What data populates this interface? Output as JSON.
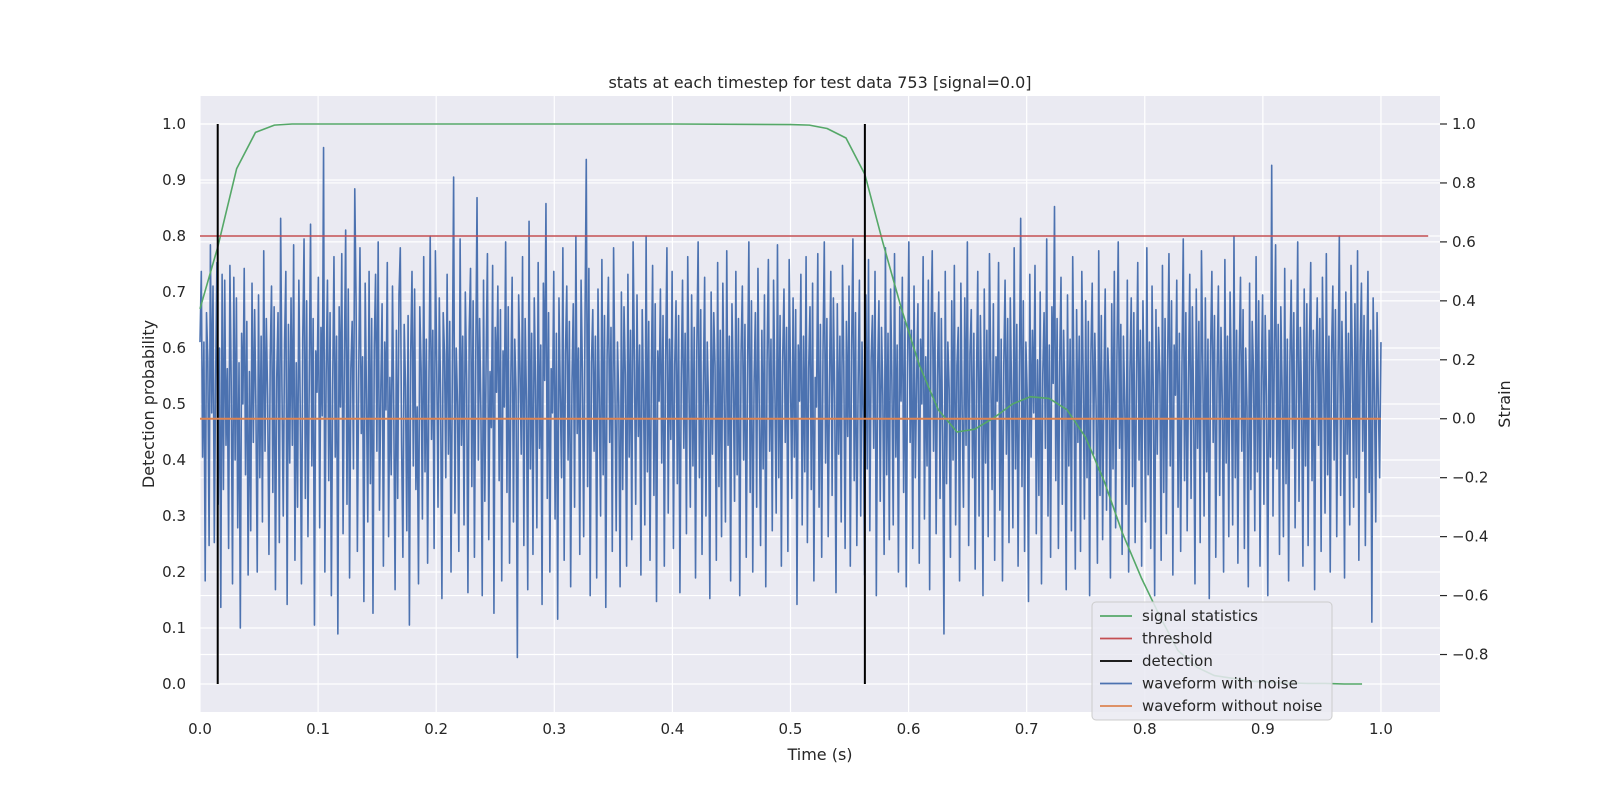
{
  "chart_data": {
    "type": "line",
    "title": "stats at each timestep for test data 753 [signal=0.0]",
    "xlabel": "Time (s)",
    "ylabel": "Detection probability",
    "y2label": "Strain",
    "xlim": [
      0.0,
      1.05
    ],
    "ylim": [
      -0.05,
      1.05
    ],
    "y2lim": [
      -0.995,
      1.095
    ],
    "xticks": [
      "0.0",
      "0.1",
      "0.2",
      "0.3",
      "0.4",
      "0.5",
      "0.6",
      "0.7",
      "0.8",
      "0.9",
      "1.0"
    ],
    "yticks": [
      "0.0",
      "0.1",
      "0.2",
      "0.3",
      "0.4",
      "0.5",
      "0.6",
      "0.7",
      "0.8",
      "0.9",
      "1.0"
    ],
    "y2ticks": [
      "−0.8",
      "−0.6",
      "−0.4",
      "−0.2",
      "0.0",
      "0.2",
      "0.4",
      "0.6",
      "0.8",
      "1.0"
    ],
    "grid": true,
    "legend_position": "lower right",
    "colors": {
      "signal": "#55a868",
      "threshold": "#c44e52",
      "detection": "#000000",
      "noisy": "#4c72b0",
      "clean": "#dd8452",
      "axes_bg": "#eaeaf2",
      "grid": "#ffffff"
    },
    "series": [
      {
        "name": "signal statistics",
        "axis": "left",
        "x": [
          0.0,
          0.015,
          0.031,
          0.047,
          0.063,
          0.078,
          0.1,
          0.2,
          0.3,
          0.4,
          0.5,
          0.516,
          0.531,
          0.547,
          0.563,
          0.578,
          0.594,
          0.609,
          0.625,
          0.641,
          0.656,
          0.672,
          0.688,
          0.703,
          0.719,
          0.734,
          0.75,
          0.766,
          0.781,
          0.797,
          0.813,
          0.828,
          0.844,
          0.859,
          0.875,
          0.891,
          0.906,
          0.922,
          0.938,
          0.953,
          0.969,
          0.984
        ],
        "y": [
          0.67,
          0.78,
          0.92,
          0.985,
          0.998,
          1.0,
          1.0,
          1.0,
          1.0,
          1.0,
          0.999,
          0.998,
          0.992,
          0.975,
          0.91,
          0.79,
          0.67,
          0.57,
          0.49,
          0.45,
          0.455,
          0.475,
          0.5,
          0.513,
          0.51,
          0.49,
          0.44,
          0.36,
          0.27,
          0.19,
          0.12,
          0.06,
          0.03,
          0.015,
          0.01,
          0.005,
          0.003,
          0.002,
          0.001,
          0.001,
          0.0,
          0.0
        ]
      },
      {
        "name": "threshold",
        "axis": "left",
        "x": [
          0.0,
          1.04
        ],
        "y": [
          0.8,
          0.8
        ]
      },
      {
        "name": "detection",
        "axis": "left",
        "segments": [
          {
            "x": 0.015,
            "y": [
              0.0,
              1.0
            ]
          },
          {
            "x": 0.563,
            "y": [
              0.0,
              1.0
            ]
          }
        ]
      },
      {
        "name": "waveform with noise",
        "axis": "right",
        "x_range": [
          0.0,
          1.0
        ],
        "y": [
          0.26,
          0.5,
          -0.13,
          0.26,
          -0.55,
          0.36,
          0.2,
          -0.43,
          0.59,
          0.02,
          0.45,
          -0.42,
          0.13,
          0.53,
          -0.29,
          0.24,
          -0.64,
          0.49,
          -0.24,
          0.47,
          -0.09,
          0.17,
          -0.44,
          0.52,
          0.12,
          -0.56,
          0.48,
          -0.14,
          0.41,
          -0.37,
          0.19,
          -0.71,
          0.29,
          0.05,
          0.51,
          -0.19,
          0.33,
          -0.53,
          0.16,
          -0.38,
          0.46,
          -0.08,
          0.37,
          0.03,
          -0.52,
          0.42,
          -0.2,
          0.28,
          -0.35,
          0.57,
          -0.11,
          0.34,
          0.07,
          -0.46,
          0.21,
          0.45,
          -0.25,
          0.38,
          -0.58,
          0.14,
          0.36,
          -0.42,
          0.68,
          0.11,
          -0.33,
          0.25,
          0.5,
          -0.63,
          0.32,
          -0.15,
          0.41,
          -0.09,
          0.59,
          -0.48,
          0.19,
          -0.3,
          0.47,
          0.06,
          -0.56,
          0.27,
          0.61,
          -0.27,
          0.4,
          -0.4,
          0.12,
          0.66,
          -0.16,
          0.34,
          -0.7,
          0.23,
          0.09,
          0.48,
          -0.37,
          0.31,
          0.01,
          0.92,
          -0.52,
          0.15,
          0.47,
          -0.21,
          0.36,
          -0.6,
          0.1,
          0.55,
          -0.13,
          0.28,
          -0.73,
          0.38,
          0.04,
          0.56,
          -0.39,
          0.2,
          0.64,
          -0.29,
          0.44,
          -0.54,
          0.17,
          0.33,
          -0.17,
          0.78,
          0.4,
          -0.45,
          0.13,
          0.58,
          -0.05,
          0.21,
          -0.62,
          0.46,
          0.07,
          -0.35,
          0.5,
          -0.22,
          0.34,
          -0.66,
          0.24,
          0.49,
          -0.11,
          0.6,
          -0.31,
          0.09,
          0.39,
          -0.5,
          0.26,
          0.03,
          0.53,
          -0.4,
          0.14,
          -0.19,
          0.45,
          0.02,
          -0.58,
          0.3,
          -0.27,
          0.42,
          0.58,
          -0.08,
          -0.47,
          0.32,
          0.11,
          -0.38,
          0.35,
          -0.7,
          0.22,
          0.5,
          -0.16,
          0.44,
          -0.24,
          0.04,
          -0.56,
          0.38,
          0.17,
          -0.34,
          0.55,
          -0.18,
          0.27,
          -0.49,
          0.12,
          0.62,
          -0.07,
          0.3,
          -0.44,
          0.57,
          0.18,
          -0.3,
          0.41,
          0.07,
          -0.61,
          0.36,
          0.22,
          -0.2,
          0.49,
          -0.12,
          0.33,
          -0.52,
          0.15,
          0.82,
          -0.32,
          0.24,
          0.05,
          -0.45,
          0.61,
          -0.09,
          0.28,
          -0.36,
          0.43,
          0.13,
          -0.59,
          0.3,
          0.51,
          -0.23,
          0.4,
          -0.47,
          0.19,
          0.75,
          -0.14,
          0.34,
          0.01,
          -0.6,
          0.47,
          -0.28,
          0.2,
          0.56,
          -0.41,
          0.16,
          -0.03,
          0.52,
          -0.66,
          0.31,
          0.09,
          0.45,
          -0.21,
          0.37,
          -0.55,
          0.23,
          0.04,
          0.6,
          -0.25,
          0.38,
          -0.49,
          0.14,
          0.48,
          -0.35,
          0.27,
          0.09,
          -0.81,
          0.42,
          0.18,
          -0.12,
          0.55,
          -0.43,
          0.34,
          0.06,
          -0.58,
          0.67,
          -0.17,
          0.29,
          -0.46,
          0.41,
          0.11,
          -0.37,
          0.53,
          -0.1,
          0.25,
          -0.63,
          0.46,
          0.13,
          0.73,
          -0.27,
          0.36,
          -0.52,
          0.17,
          0.02,
          0.5,
          -0.34,
          0.29,
          -0.68,
          0.41,
          0.08,
          -0.2,
          0.58,
          -0.48,
          0.22,
          0.45,
          -0.14,
          0.33,
          -0.57,
          0.12,
          0.39,
          -0.3,
          0.62,
          -0.05,
          0.24,
          -0.46,
          0.47,
          0.16,
          -0.4,
          0.32,
          0.88,
          -0.23,
          0.51,
          -0.6,
          0.19,
          0.37,
          -0.11,
          0.28,
          -0.54,
          0.44,
          0.07,
          -0.33,
          0.54,
          -0.19,
          0.35,
          -0.64,
          0.21,
          0.48,
          -0.08,
          0.31,
          -0.45,
          0.58,
          0.12,
          -0.38,
          0.26,
          0.05,
          -0.57,
          0.43,
          -0.24,
          0.38,
          0.15,
          -0.5,
          0.49,
          -0.13,
          0.3,
          -0.41,
          0.6,
          0.2,
          -0.29,
          0.42,
          -0.06,
          0.25,
          -0.53,
          0.37,
          0.09,
          -0.36,
          0.62,
          -0.18,
          0.33,
          -0.48,
          0.14,
          0.52,
          -0.26,
          0.39,
          -0.62,
          0.23,
          0.06,
          0.44,
          -0.15,
          0.35,
          -0.5,
          0.2,
          0.58,
          -0.32,
          0.27,
          -0.07,
          0.5,
          -0.44,
          0.18,
          0.4,
          -0.22,
          0.35,
          -0.59,
          0.13,
          0.47,
          -0.1,
          0.29,
          -0.39,
          0.55,
          0.09,
          -0.3,
          0.42,
          -0.16,
          0.31,
          -0.54,
          0.24,
          0.6,
          -0.2,
          0.37,
          -0.46,
          0.11,
          0.48,
          -0.33,
          0.26,
          0.04,
          -0.61,
          0.43,
          -0.12,
          0.36,
          0.18,
          -0.48,
          0.53,
          -0.23,
          0.3,
          -0.4,
          0.46,
          0.07,
          -0.35,
          0.57,
          -0.09,
          0.28,
          -0.55,
          0.39,
          0.14,
          -0.28,
          0.5,
          -0.19,
          0.34,
          -0.6,
          0.22,
          0.45,
          -0.14,
          0.32,
          -0.47,
          0.16,
          0.6,
          -0.25,
          0.4,
          -0.52,
          0.12,
          0.36,
          -0.3,
          0.51,
          0.03,
          -0.43,
          0.3,
          -0.17,
          0.42,
          -0.57,
          0.19,
          0.54,
          -0.11,
          0.27,
          -0.38,
          0.47,
          0.1,
          -0.32,
          0.59,
          -0.2,
          0.35,
          -0.5,
          0.2,
          0.44,
          -0.08,
          0.31,
          -0.45,
          0.54,
          0.15,
          -0.27,
          0.41,
          -0.13,
          0.37,
          -0.63,
          0.25,
          0.06,
          0.49,
          -0.36,
          0.28,
          -0.18,
          0.55,
          -0.42,
          0.17,
          0.38,
          -0.24,
          0.46,
          -0.55,
          0.14,
          0.04,
          0.56,
          -0.3,
          0.32,
          -0.47,
          0.22,
          0.6,
          -0.15,
          0.34,
          -0.4,
          0.12,
          0.5,
          -0.26,
          0.41,
          0.07,
          -0.59,
          0.39,
          -0.12,
          0.28,
          -0.35,
          0.52,
          0.18,
          -0.44,
          0.33,
          -0.06,
          0.45,
          -0.5,
          0.23,
          0.61,
          -0.21,
          0.36,
          -0.43,
          0.11,
          0.47,
          -0.33,
          0.26,
          0.02,
          -0.53,
          0.42,
          -0.17,
          0.54,
          -0.38,
          0.2,
          0.35,
          -0.1,
          0.5,
          -0.6,
          0.15,
          0.4,
          -0.28,
          0.31,
          0.08,
          -0.46,
          0.58,
          -0.19,
          0.29,
          -0.41,
          0.44,
          0.12,
          -0.36,
          0.56,
          -0.13,
          0.25,
          -0.52,
          0.38,
          0.06,
          0.48,
          -0.25,
          0.33,
          -0.57,
          0.17,
          0.6,
          -0.08,
          0.3,
          -0.44,
          0.45,
          -0.2,
          0.13,
          0.39,
          -0.49,
          0.27,
          0.05,
          0.55,
          -0.34,
          0.21,
          -0.16,
          0.47,
          -0.58,
          0.29,
          0.57,
          -0.11,
          0.36,
          -0.39,
          0.14,
          0.43,
          -0.27,
          0.34,
          -0.06,
          -0.73,
          0.5,
          -0.22,
          0.26,
          0.1,
          -0.47,
          0.4,
          -0.14,
          0.52,
          -0.36,
          0.18,
          0.31,
          -0.55,
          0.46,
          0.03,
          -0.3,
          0.41,
          -0.09,
          0.6,
          -0.43,
          0.22,
          0.37,
          -0.2,
          0.29,
          -0.51,
          0.12,
          0.5,
          -0.33,
          0.35,
          0.07,
          -0.6,
          0.44,
          -0.15,
          0.3,
          -0.4,
          0.56,
          0.16,
          -0.24,
          0.39,
          -0.48,
          0.21,
          0.06,
          0.53,
          -0.31,
          0.27,
          -0.55,
          0.18,
          0.47,
          -0.12,
          0.34,
          -0.42,
          0.41,
          0.09,
          -0.37,
          0.58,
          -0.17,
          0.32,
          -0.5,
          0.14,
          0.68,
          -0.23,
          0.4,
          -0.45,
          0.26,
          0.08,
          -0.62,
          0.49,
          -0.13,
          0.3,
          0.02,
          0.52,
          -0.39,
          0.2,
          -0.26,
          0.43,
          -0.56,
          0.15,
          0.36,
          -0.1,
          0.61,
          -0.33,
          0.25,
          -0.47,
          0.38,
          0.12,
          0.72,
          -0.21,
          0.34,
          -0.44,
          0.19,
          0.48,
          -0.29,
          0.3,
          0.05,
          -0.58,
          0.42,
          -0.16,
          0.27,
          -0.38,
          0.55,
          0.11,
          -0.51,
          0.37,
          -0.08,
          0.28,
          -0.45,
          0.5,
          0.17,
          -0.34,
          0.4,
          -0.2,
          0.33,
          -0.6,
          0.22,
          0.46,
          -0.12,
          0.29,
          0.04,
          -0.49,
          0.57,
          -0.26,
          0.35,
          -0.41,
          0.13,
          0.44,
          -0.31,
          0.24,
          0.09,
          -0.54,
          0.39,
          -0.17,
          0.5,
          -0.37,
          0.21,
          0.6,
          -0.1,
          0.32,
          -0.46,
          0.28,
          0.05,
          -0.29,
          0.47,
          -0.52,
          0.16,
          0.41,
          -0.23,
          0.36,
          -0.42,
          0.12,
          0.53,
          -0.14,
          0.3,
          -0.5,
          0.4,
          0.1,
          -0.35,
          0.58,
          -0.19,
          0.26,
          -0.44,
          0.45,
          0.07,
          -0.6,
          0.37,
          -0.12,
          0.31,
          0.15,
          -0.48,
          0.52,
          -0.25,
          0.34,
          -0.39,
          0.2,
          0.56,
          -0.16,
          0.4,
          -0.53,
          0.25,
          0.08,
          0.47,
          -0.3,
          0.29,
          -0.45,
          0.18,
          0.61,
          -0.21,
          0.36,
          -0.38,
          0.13,
          0.49,
          -0.27,
          0.38,
          0.03,
          -0.56,
          0.44,
          -0.1,
          0.33,
          -0.42,
          0.57,
          0.19,
          -0.33,
          0.41,
          -0.18,
          0.27,
          -0.61,
          0.23,
          0.5,
          -0.08,
          0.35,
          -0.47,
          0.15,
          0.45,
          -0.26,
          0.31,
          0.06,
          -0.52,
          0.54,
          -0.15,
          0.28,
          -0.4,
          0.43,
          0.11,
          -0.36,
          0.62,
          -0.2,
          0.3,
          -0.49,
          0.2,
          0.48,
          -0.11,
          0.37,
          -0.44,
          0.24,
          0.04,
          -0.57,
          0.46,
          -0.24,
          0.33,
          0.16,
          -0.38,
          0.55,
          -0.18,
          0.4,
          -0.5,
          0.14,
          0.42,
          -0.29,
          0.35,
          0.08,
          -0.6,
          0.3,
          -0.13,
          0.86,
          -0.33,
          0.22,
          0.59,
          -0.17,
          0.32,
          -0.46,
          0.38,
          0.1,
          -0.4,
          0.51,
          -0.22,
          0.27,
          -0.55,
          0.19,
          0.47,
          -0.1,
          0.36,
          -0.37,
          0.12,
          0.6,
          -0.28,
          0.31,
          0.05,
          -0.5,
          0.44,
          -0.16,
          0.39,
          -0.43,
          0.25,
          0.53,
          -0.21,
          0.3,
          -0.58,
          0.17,
          0.41,
          -0.09,
          0.34,
          -0.45,
          0.48,
          0.13,
          -0.32,
          0.56,
          -0.19,
          0.28,
          -0.52,
          0.22,
          0.45,
          -0.14,
          0.37,
          -0.4,
          0.16,
          0.62,
          -0.26,
          0.33,
          0.07,
          -0.54,
          0.43,
          -0.12,
          0.29,
          -0.36,
          0.52,
          0.18,
          -0.3,
          0.39,
          -0.2,
          0.57,
          -0.48,
          0.24,
          0.46,
          -0.11,
          0.35,
          -0.43,
          0.15,
          0.5,
          -0.25,
          0.3,
          -0.69,
          0.41,
          0.09,
          -0.35,
          0.36,
          0.05,
          -0.2,
          0.26
        ]
      },
      {
        "name": "waveform without noise",
        "axis": "right",
        "x": [
          0.0,
          1.0
        ],
        "y": [
          0.0,
          0.0
        ]
      }
    ]
  }
}
